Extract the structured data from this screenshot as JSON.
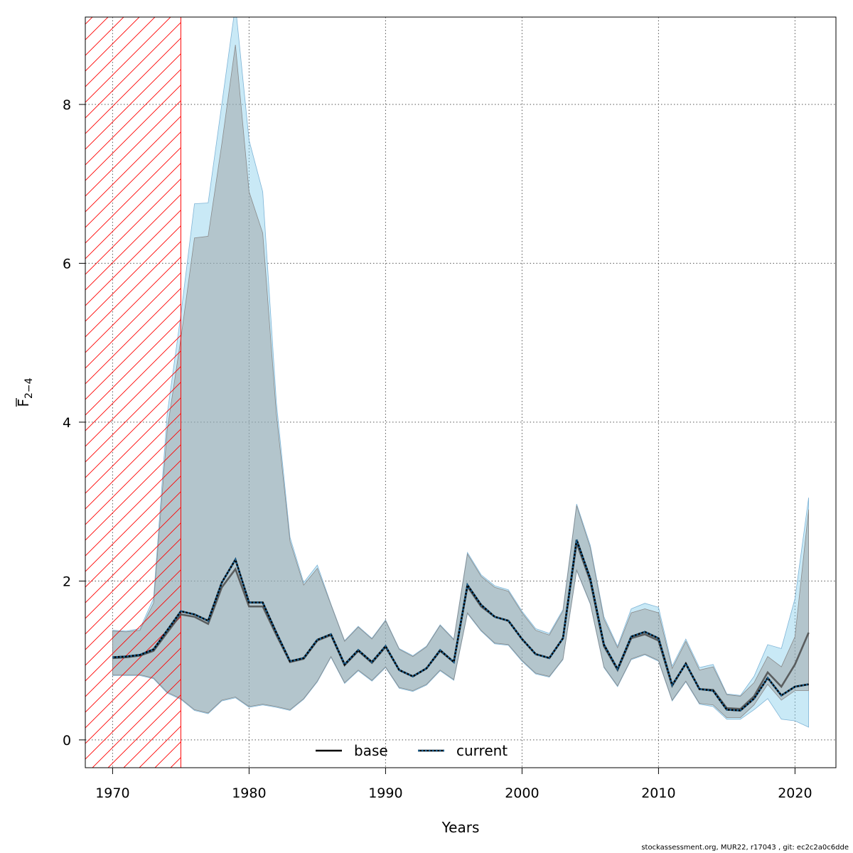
{
  "chart_data": {
    "type": "line",
    "title": "",
    "xlabel": "Years",
    "ylabel_main": "F",
    "ylabel_sub": "2−4",
    "xlim": [
      1968,
      2023
    ],
    "ylim": [
      -0.35,
      9.1
    ],
    "xticks": [
      1970,
      1980,
      1990,
      2000,
      2010,
      2020
    ],
    "yticks": [
      0,
      2,
      4,
      6,
      8
    ],
    "grid": true,
    "legend_position": "bottom-center",
    "hatched_region": {
      "x_start": 1968,
      "x_end": 1975,
      "color": "#ff0000"
    },
    "years": [
      1970,
      1971,
      1972,
      1973,
      1974,
      1975,
      1976,
      1977,
      1978,
      1979,
      1980,
      1981,
      1982,
      1983,
      1984,
      1985,
      1986,
      1987,
      1988,
      1989,
      1990,
      1991,
      1992,
      1993,
      1994,
      1995,
      1996,
      1997,
      1998,
      1999,
      2000,
      2001,
      2002,
      2003,
      2004,
      2005,
      2006,
      2007,
      2008,
      2009,
      2010,
      2011,
      2012,
      2013,
      2014,
      2015,
      2016,
      2017,
      2018,
      2019,
      2020,
      2021
    ],
    "series": [
      {
        "name": "base",
        "color": "#000000",
        "band_color": "#999999",
        "values": [
          1.03,
          1.04,
          1.06,
          1.12,
          1.35,
          1.58,
          1.55,
          1.46,
          1.92,
          2.15,
          1.68,
          1.68,
          1.32,
          0.98,
          1.02,
          1.25,
          1.32,
          0.94,
          1.12,
          0.97,
          1.17,
          0.88,
          0.8,
          0.9,
          1.12,
          0.98,
          1.93,
          1.68,
          1.55,
          1.5,
          1.27,
          1.08,
          1.03,
          1.28,
          2.48,
          2.0,
          1.18,
          0.88,
          1.28,
          1.33,
          1.25,
          0.68,
          0.96,
          0.64,
          0.63,
          0.4,
          0.39,
          0.55,
          0.85,
          0.67,
          0.95,
          1.35
        ],
        "lower": [
          0.82,
          0.82,
          0.82,
          0.78,
          0.6,
          0.52,
          0.38,
          0.34,
          0.5,
          0.54,
          0.42,
          0.45,
          0.42,
          0.38,
          0.52,
          0.74,
          1.05,
          0.72,
          0.88,
          0.75,
          0.92,
          0.66,
          0.62,
          0.7,
          0.88,
          0.76,
          1.6,
          1.38,
          1.22,
          1.2,
          1.0,
          0.84,
          0.8,
          1.02,
          2.14,
          1.72,
          0.92,
          0.68,
          1.02,
          1.08,
          1.0,
          0.5,
          0.74,
          0.46,
          0.44,
          0.28,
          0.28,
          0.44,
          0.7,
          0.5,
          0.62,
          0.62
        ],
        "upper": [
          1.37,
          1.36,
          1.38,
          1.72,
          3.9,
          5.05,
          6.32,
          6.34,
          7.5,
          8.75,
          6.9,
          6.38,
          4.1,
          2.5,
          1.95,
          2.16,
          1.7,
          1.24,
          1.42,
          1.27,
          1.5,
          1.14,
          1.05,
          1.17,
          1.44,
          1.26,
          2.34,
          2.06,
          1.92,
          1.87,
          1.6,
          1.38,
          1.32,
          1.62,
          2.95,
          2.42,
          1.52,
          1.16,
          1.6,
          1.65,
          1.6,
          0.9,
          1.24,
          0.88,
          0.92,
          0.57,
          0.55,
          0.72,
          1.05,
          0.92,
          1.3,
          2.9
        ]
      },
      {
        "name": "current",
        "color": "#000000",
        "dash_color": "#1a5d8c",
        "band_color": "#87ceeb",
        "values": [
          1.04,
          1.05,
          1.07,
          1.14,
          1.38,
          1.62,
          1.58,
          1.5,
          1.98,
          2.27,
          1.73,
          1.73,
          1.35,
          0.99,
          1.03,
          1.26,
          1.33,
          0.95,
          1.13,
          0.98,
          1.18,
          0.88,
          0.8,
          0.9,
          1.13,
          0.98,
          1.95,
          1.7,
          1.55,
          1.5,
          1.27,
          1.08,
          1.03,
          1.28,
          2.52,
          2.03,
          1.2,
          0.89,
          1.3,
          1.36,
          1.28,
          0.69,
          0.96,
          0.64,
          0.62,
          0.38,
          0.37,
          0.52,
          0.78,
          0.56,
          0.67,
          0.7
        ],
        "lower": [
          0.81,
          0.81,
          0.81,
          0.77,
          0.59,
          0.51,
          0.37,
          0.33,
          0.49,
          0.53,
          0.41,
          0.44,
          0.41,
          0.37,
          0.51,
          0.73,
          1.04,
          0.71,
          0.87,
          0.74,
          0.91,
          0.65,
          0.61,
          0.69,
          0.87,
          0.75,
          1.59,
          1.37,
          1.21,
          1.19,
          0.99,
          0.83,
          0.79,
          1.01,
          2.13,
          1.71,
          0.91,
          0.67,
          1.01,
          1.07,
          0.99,
          0.49,
          0.73,
          0.45,
          0.42,
          0.26,
          0.26,
          0.38,
          0.52,
          0.26,
          0.24,
          0.16
        ],
        "upper": [
          1.38,
          1.37,
          1.4,
          1.78,
          4.1,
          5.35,
          6.75,
          6.76,
          8.0,
          9.25,
          7.55,
          6.9,
          4.25,
          2.55,
          1.98,
          2.2,
          1.71,
          1.25,
          1.43,
          1.28,
          1.51,
          1.15,
          1.06,
          1.18,
          1.45,
          1.27,
          2.36,
          2.08,
          1.94,
          1.89,
          1.62,
          1.4,
          1.34,
          1.64,
          2.97,
          2.45,
          1.55,
          1.18,
          1.65,
          1.72,
          1.67,
          0.93,
          1.27,
          0.91,
          0.95,
          0.58,
          0.56,
          0.8,
          1.2,
          1.15,
          1.78,
          3.05
        ]
      }
    ]
  },
  "footer": "stockassessment.org, MUR22, r17043 , git: ec2c2a0c6dde"
}
